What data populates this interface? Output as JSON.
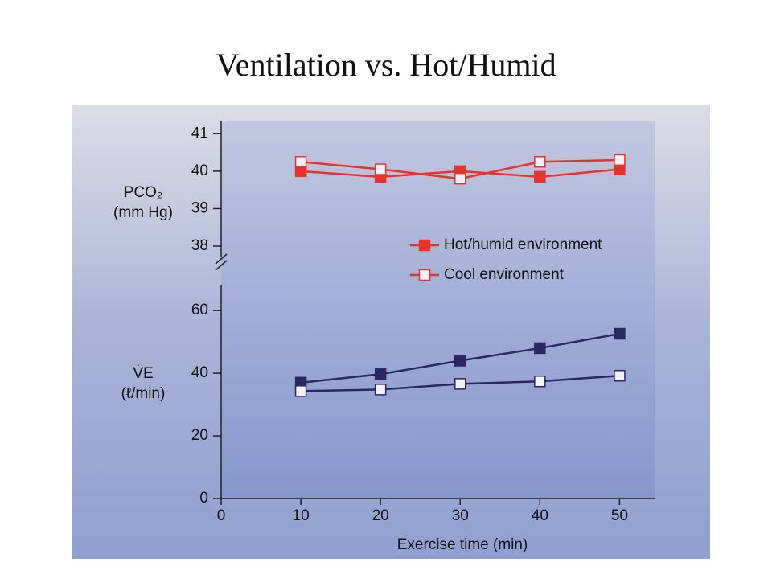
{
  "slide_title": "Ventilation vs. Hot/Humid",
  "chart_data": [
    {
      "type": "line",
      "y_label": [
        "PCO₂",
        "(mm Hg)"
      ],
      "x": [
        10,
        20,
        30,
        40,
        50
      ],
      "xlim": [
        0,
        54.5
      ],
      "ylim": [
        37.7,
        41.35
      ],
      "yticks": [
        38,
        39,
        40,
        41
      ],
      "legend": "lower right",
      "series": [
        {
          "name": "Hot/humid environment",
          "color": "#e8322c",
          "marker_fill": "#e8322c",
          "values": [
            40.0,
            39.85,
            40.0,
            39.85,
            40.05
          ]
        },
        {
          "name": "Cool environment",
          "color": "#e8322c",
          "marker_fill": "#f2f0f8",
          "values": [
            40.25,
            40.05,
            39.8,
            40.25,
            40.3
          ]
        }
      ]
    },
    {
      "type": "line",
      "y_label": [
        "V̇E",
        "(ℓ/min)"
      ],
      "x_label": "Exercise time (min)",
      "x": [
        10,
        20,
        30,
        40,
        50
      ],
      "xlim": [
        0,
        54.5
      ],
      "xticks": [
        0,
        10,
        20,
        30,
        40,
        50
      ],
      "ylim": [
        0,
        68
      ],
      "yticks": [
        0,
        20,
        40,
        60
      ],
      "series": [
        {
          "color": "#2b2762",
          "marker_fill": "#2b2762",
          "values": [
            37,
            39.7,
            44,
            48,
            52.6
          ]
        },
        {
          "color": "#2b2762",
          "marker_fill": "#f2f0f8",
          "values": [
            34.3,
            34.8,
            36.6,
            37.4,
            39.2
          ]
        }
      ]
    }
  ]
}
